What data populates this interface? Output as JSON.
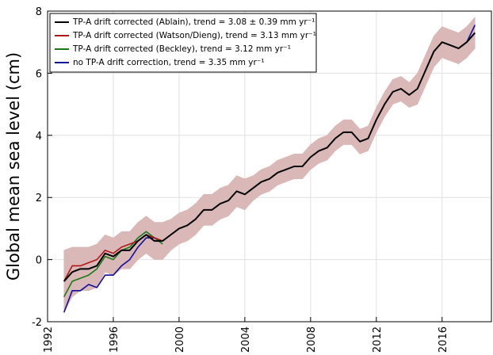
{
  "chart_data": {
    "type": "line",
    "ylabel": "Global mean sea level (cm)",
    "xlim": [
      1992,
      2019
    ],
    "ylim": [
      -2,
      8
    ],
    "xticks": [
      1992,
      1996,
      2000,
      2004,
      2008,
      2012,
      2016
    ],
    "yticks": [
      -2,
      0,
      2,
      4,
      6,
      8
    ],
    "grid": true,
    "legend": "upper left",
    "band_color": "#dbb8b8",
    "x": [
      1993.0,
      1993.5,
      1994.0,
      1994.5,
      1995.0,
      1995.5,
      1996.0,
      1996.5,
      1997.0,
      1997.5,
      1998.0,
      1998.5,
      1999.0,
      1999.5,
      2000.0,
      2000.5,
      2001.0,
      2001.5,
      2002.0,
      2002.5,
      2003.0,
      2003.5,
      2004.0,
      2004.5,
      2005.0,
      2005.5,
      2006.0,
      2006.5,
      2007.0,
      2007.5,
      2008.0,
      2008.5,
      2009.0,
      2009.5,
      2010.0,
      2010.5,
      2011.0,
      2011.5,
      2012.0,
      2012.5,
      2013.0,
      2013.5,
      2014.0,
      2014.5,
      2015.0,
      2015.5,
      2016.0,
      2016.5,
      2017.0,
      2017.5,
      2018.0
    ],
    "series": [
      {
        "name": "TP-A drift corrected (Ablain), trend =  3.08 ±  0.39 mm yr⁻¹",
        "color": "#000000",
        "values": [
          -0.7,
          -0.4,
          -0.3,
          -0.3,
          -0.2,
          0.2,
          0.1,
          0.3,
          0.3,
          0.6,
          0.8,
          0.6,
          0.6,
          0.8,
          1.0,
          1.1,
          1.3,
          1.6,
          1.6,
          1.8,
          1.9,
          2.2,
          2.1,
          2.3,
          2.5,
          2.6,
          2.8,
          2.9,
          3.0,
          3.0,
          3.3,
          3.5,
          3.6,
          3.9,
          4.1,
          4.1,
          3.8,
          3.9,
          4.5,
          5.0,
          5.4,
          5.5,
          5.3,
          5.5,
          6.1,
          6.7,
          7.0,
          6.9,
          6.8,
          7.0,
          7.3
        ],
        "error": [
          1.0,
          0.8,
          0.7,
          0.7,
          0.7,
          0.6,
          0.6,
          0.6,
          0.6,
          0.6,
          0.6,
          0.6,
          0.6,
          0.5,
          0.5,
          0.5,
          0.5,
          0.5,
          0.5,
          0.5,
          0.5,
          0.5,
          0.5,
          0.4,
          0.4,
          0.4,
          0.4,
          0.4,
          0.4,
          0.4,
          0.4,
          0.4,
          0.4,
          0.4,
          0.4,
          0.4,
          0.4,
          0.4,
          0.4,
          0.4,
          0.4,
          0.4,
          0.4,
          0.5,
          0.5,
          0.5,
          0.5,
          0.5,
          0.5,
          0.5,
          0.5
        ]
      },
      {
        "name": "TP-A drift corrected (Watson/Dieng), trend =  3.13 mm yr⁻¹",
        "color": "#b01818",
        "values": [
          -0.7,
          -0.2,
          -0.2,
          -0.1,
          0.0,
          0.3,
          0.2,
          0.4,
          0.5,
          0.6,
          0.8,
          0.7,
          0.6,
          null,
          null,
          null,
          null,
          null,
          null,
          null,
          null,
          null,
          null,
          null,
          null,
          null,
          null,
          null,
          null,
          null,
          null,
          null,
          null,
          null,
          null,
          null,
          null,
          null,
          null,
          null,
          null,
          null,
          null,
          null,
          null,
          null,
          null,
          null,
          null,
          null,
          null
        ]
      },
      {
        "name": "TP-A drift corrected (Beckley), trend =  3.12 mm yr⁻¹",
        "color": "#1a7a1a",
        "values": [
          -1.2,
          -0.7,
          -0.6,
          -0.5,
          -0.3,
          0.1,
          0.0,
          0.3,
          0.4,
          0.7,
          0.9,
          0.7,
          0.5,
          null,
          null,
          null,
          null,
          null,
          null,
          null,
          null,
          null,
          null,
          null,
          null,
          null,
          null,
          null,
          null,
          null,
          null,
          null,
          null,
          null,
          null,
          null,
          null,
          null,
          null,
          null,
          null,
          null,
          null,
          null,
          null,
          null,
          null,
          null,
          null,
          null,
          null
        ]
      },
      {
        "name": "no TP-A drift correction, trend =  3.35 mm yr⁻¹",
        "color": "#10109a",
        "values": [
          -1.7,
          -1.0,
          -1.0,
          -0.8,
          -0.9,
          -0.5,
          -0.5,
          -0.2,
          0.0,
          0.4,
          0.7,
          0.7,
          0.6,
          null,
          null,
          null,
          null,
          null,
          null,
          null,
          null,
          null,
          null,
          null,
          null,
          null,
          null,
          null,
          null,
          null,
          null,
          null,
          null,
          null,
          null,
          null,
          null,
          null,
          null,
          null,
          null,
          null,
          null,
          null,
          null,
          null,
          null,
          null,
          null,
          7.0,
          7.55
        ]
      }
    ]
  }
}
